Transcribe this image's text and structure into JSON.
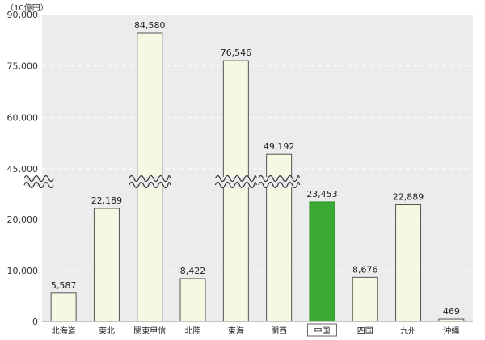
{
  "chart_data": {
    "type": "bar",
    "unit_label": "（10億円）",
    "categories": [
      "北海道",
      "東北",
      "関東甲信",
      "北陸",
      "東海",
      "関西",
      "中国",
      "四国",
      "九州",
      "沖縄"
    ],
    "values": [
      5587,
      22189,
      84580,
      8422,
      76546,
      49192,
      23453,
      8676,
      22889,
      469
    ],
    "value_labels": [
      "5,587",
      "22,189",
      "84,580",
      "8,422",
      "76,546",
      "49,192",
      "23,453",
      "8,676",
      "22,889",
      "469"
    ],
    "highlight_category": "中国",
    "y_ticks": [
      {
        "value": 0,
        "label": "0"
      },
      {
        "value": 10000,
        "label": "10,000"
      },
      {
        "value": 20000,
        "label": "20,000"
      },
      {
        "value": 45000,
        "label": "45,000"
      },
      {
        "value": 60000,
        "label": "60,000"
      },
      {
        "value": 75000,
        "label": "75,000"
      },
      {
        "value": 90000,
        "label": "90,000"
      }
    ],
    "axis_break": {
      "from": 25000,
      "to": 45000
    },
    "ylim": [
      0,
      90000
    ],
    "grid": true,
    "colors": {
      "bar": "#f5f8e3",
      "bar_highlight": "#3aaa35",
      "bar_outline": "#555555",
      "plot_background": "#ececec",
      "grid": "#ffffff"
    }
  }
}
